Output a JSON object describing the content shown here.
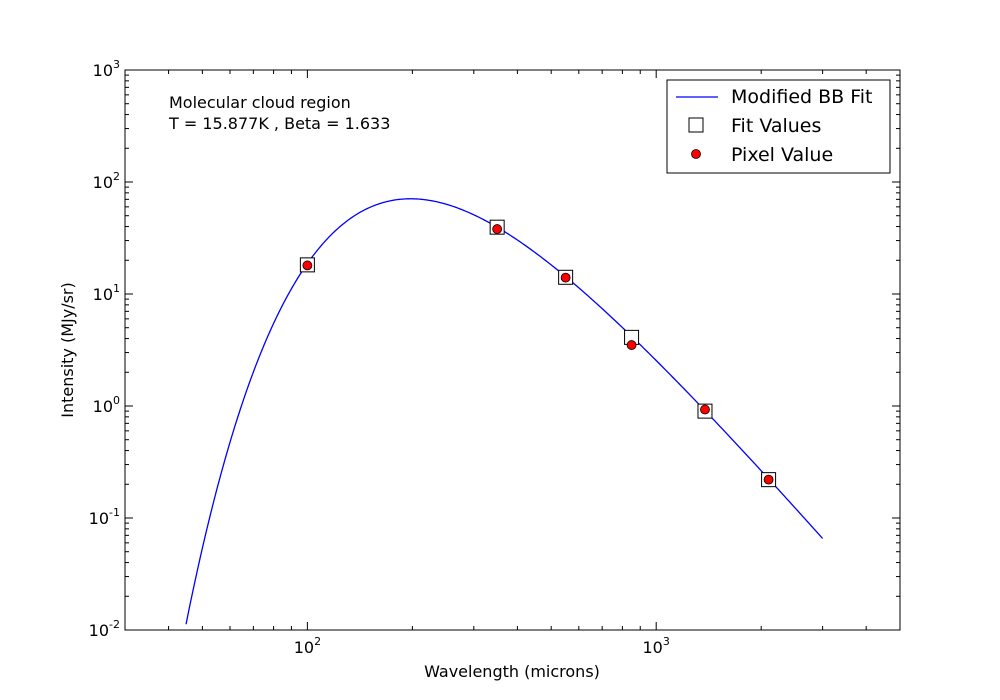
{
  "chart_data": {
    "type": "scatter",
    "xlabel": "Wavelength (microns)",
    "ylabel": "Intensity (MJy/sr)",
    "xscale": "log",
    "yscale": "log",
    "xlim": [
      30,
      5000
    ],
    "ylim": [
      0.01,
      1000
    ],
    "x_ticks": [
      {
        "base": "10",
        "exp": "2",
        "value": 100
      },
      {
        "base": "10",
        "exp": "3",
        "value": 1000
      }
    ],
    "y_ticks": [
      {
        "base": "10",
        "exp": "-2",
        "value": 0.01
      },
      {
        "base": "10",
        "exp": "-1",
        "value": 0.1
      },
      {
        "base": "10",
        "exp": "0",
        "value": 1
      },
      {
        "base": "10",
        "exp": "1",
        "value": 10
      },
      {
        "base": "10",
        "exp": "2",
        "value": 100
      },
      {
        "base": "10",
        "exp": "3",
        "value": 1000
      }
    ],
    "annotation": [
      "Molecular cloud region",
      "T = 15.877K , Beta = 1.633"
    ],
    "fit_params": {
      "T": 15.877,
      "beta": 1.633,
      "x_range": [
        30,
        3000
      ]
    },
    "legend_position": "top-right",
    "series": [
      {
        "name": "Modified BB Fit",
        "kind": "line",
        "color": "#0000ff"
      },
      {
        "name": "Fit Values",
        "kind": "marker",
        "marker": "square",
        "color": "#ffffff",
        "x": [
          100,
          350,
          550,
          850,
          1380,
          2100
        ],
        "y": [
          18.2,
          39.5,
          14.1,
          4.1,
          0.9,
          0.22
        ]
      },
      {
        "name": "Pixel Value",
        "kind": "marker",
        "marker": "circle",
        "color": "#ff0000",
        "x": [
          100,
          350,
          550,
          850,
          1380,
          2100
        ],
        "y": [
          18.0,
          38.0,
          14.0,
          3.5,
          0.93,
          0.22
        ]
      }
    ]
  }
}
